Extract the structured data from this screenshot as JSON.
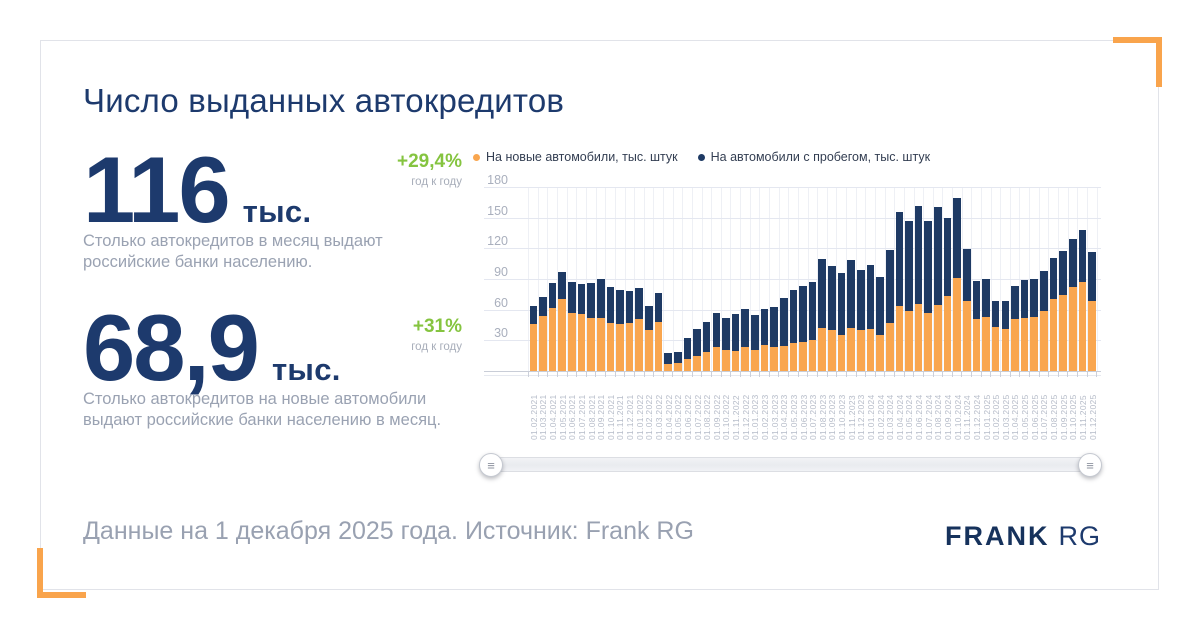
{
  "title": "Число выданных автокредитов",
  "stats": [
    {
      "value": "116",
      "unit": "тыс.",
      "delta": "+29,4%",
      "delta_caption": "год к году",
      "description": "Столько автокредитов в месяц выдают российские банки населению."
    },
    {
      "value": "68,9",
      "unit": "тыс.",
      "delta": "+31%",
      "delta_caption": "год к году",
      "description": "Столько автокредитов на новые автомобили выдают российские банки населению в месяц."
    }
  ],
  "footer": {
    "text": "Данные на 1 декабря 2025 года. Источник: Frank RG",
    "logo_primary": "FRANK",
    "logo_secondary": "RG"
  },
  "ui": {
    "handle_icon": "≡"
  },
  "colors": {
    "navy": "#1d3a6d",
    "bar_new": "#f9a64f",
    "bar_used": "#1e3a64",
    "green": "#85c440",
    "gray_text": "#9aa2b2",
    "axis_text": "#a9afbd",
    "grid": "#e4e7f0",
    "accent_orange": "#f9a44c"
  },
  "chart_data": {
    "type": "bar",
    "stacked": true,
    "legend_position": "top",
    "grid": true,
    "ylim": [
      0,
      180
    ],
    "yticks": [
      30,
      60,
      90,
      120,
      150,
      180
    ],
    "legend": [
      {
        "label": "На новые автомобили, тыс. штук",
        "color": "#f9a64f"
      },
      {
        "label": "На автомобили с пробегом, тыс. штук",
        "color": "#1e3a64"
      }
    ],
    "categories": [
      "01.02.2021",
      "01.03.2021",
      "01.04.2021",
      "01.05.2021",
      "01.06.2021",
      "01.07.2021",
      "01.08.2021",
      "01.09.2021",
      "01.10.2021",
      "01.11.2021",
      "01.12.2021",
      "01.01.2022",
      "01.02.2022",
      "01.03.2022",
      "01.04.2022",
      "01.05.2022",
      "01.06.2022",
      "01.07.2022",
      "01.08.2022",
      "01.09.2022",
      "01.10.2022",
      "01.11.2022",
      "01.12.2022",
      "01.01.2023",
      "01.02.2023",
      "01.03.2023",
      "01.04.2023",
      "01.05.2023",
      "01.06.2023",
      "01.07.2023",
      "01.08.2023",
      "01.09.2023",
      "01.10.2023",
      "01.11.2023",
      "01.12.2023",
      "01.01.2024",
      "01.02.2024",
      "01.03.2024",
      "01.04.2024",
      "01.05.2024",
      "01.06.2024",
      "01.07.2024",
      "01.08.2024",
      "01.09.2024",
      "01.10.2024",
      "01.11.2024",
      "01.12.2024",
      "01.01.2025",
      "01.02.2025",
      "01.03.2025",
      "01.04.2025",
      "01.05.2025",
      "01.06.2025",
      "01.07.2025",
      "01.08.2025",
      "01.09.2025",
      "01.10.2025",
      "01.11.2025",
      "01.12.2025"
    ],
    "series": [
      {
        "name": "На новые автомобили, тыс. штук",
        "values": [
          46,
          54,
          62,
          70,
          57,
          56,
          52,
          52,
          47,
          46,
          47,
          51,
          40,
          48,
          7,
          8,
          12,
          15,
          19,
          23,
          21,
          20,
          23,
          21,
          25,
          23,
          24,
          27,
          28,
          30,
          42,
          40,
          35,
          42,
          40,
          41,
          35,
          47,
          64,
          59,
          66,
          57,
          65,
          73,
          91,
          68,
          51,
          53,
          43,
          41,
          51,
          52,
          53,
          59,
          70,
          74,
          82,
          87,
          68.9
        ]
      },
      {
        "name": "На автомобили с пробегом, тыс. штук",
        "values": [
          18,
          18,
          24,
          27,
          30,
          29,
          34,
          38,
          35,
          33,
          31,
          30,
          24,
          28,
          11,
          11,
          20,
          26,
          29,
          34,
          31,
          36,
          38,
          34,
          36,
          40,
          47,
          52,
          55,
          57,
          68,
          63,
          61,
          67,
          59,
          63,
          57,
          71,
          92,
          88,
          95,
          90,
          95,
          77,
          78,
          51,
          37,
          37,
          25,
          27,
          32,
          37,
          37,
          39,
          41,
          43,
          47,
          51,
          47.1
        ]
      }
    ]
  }
}
